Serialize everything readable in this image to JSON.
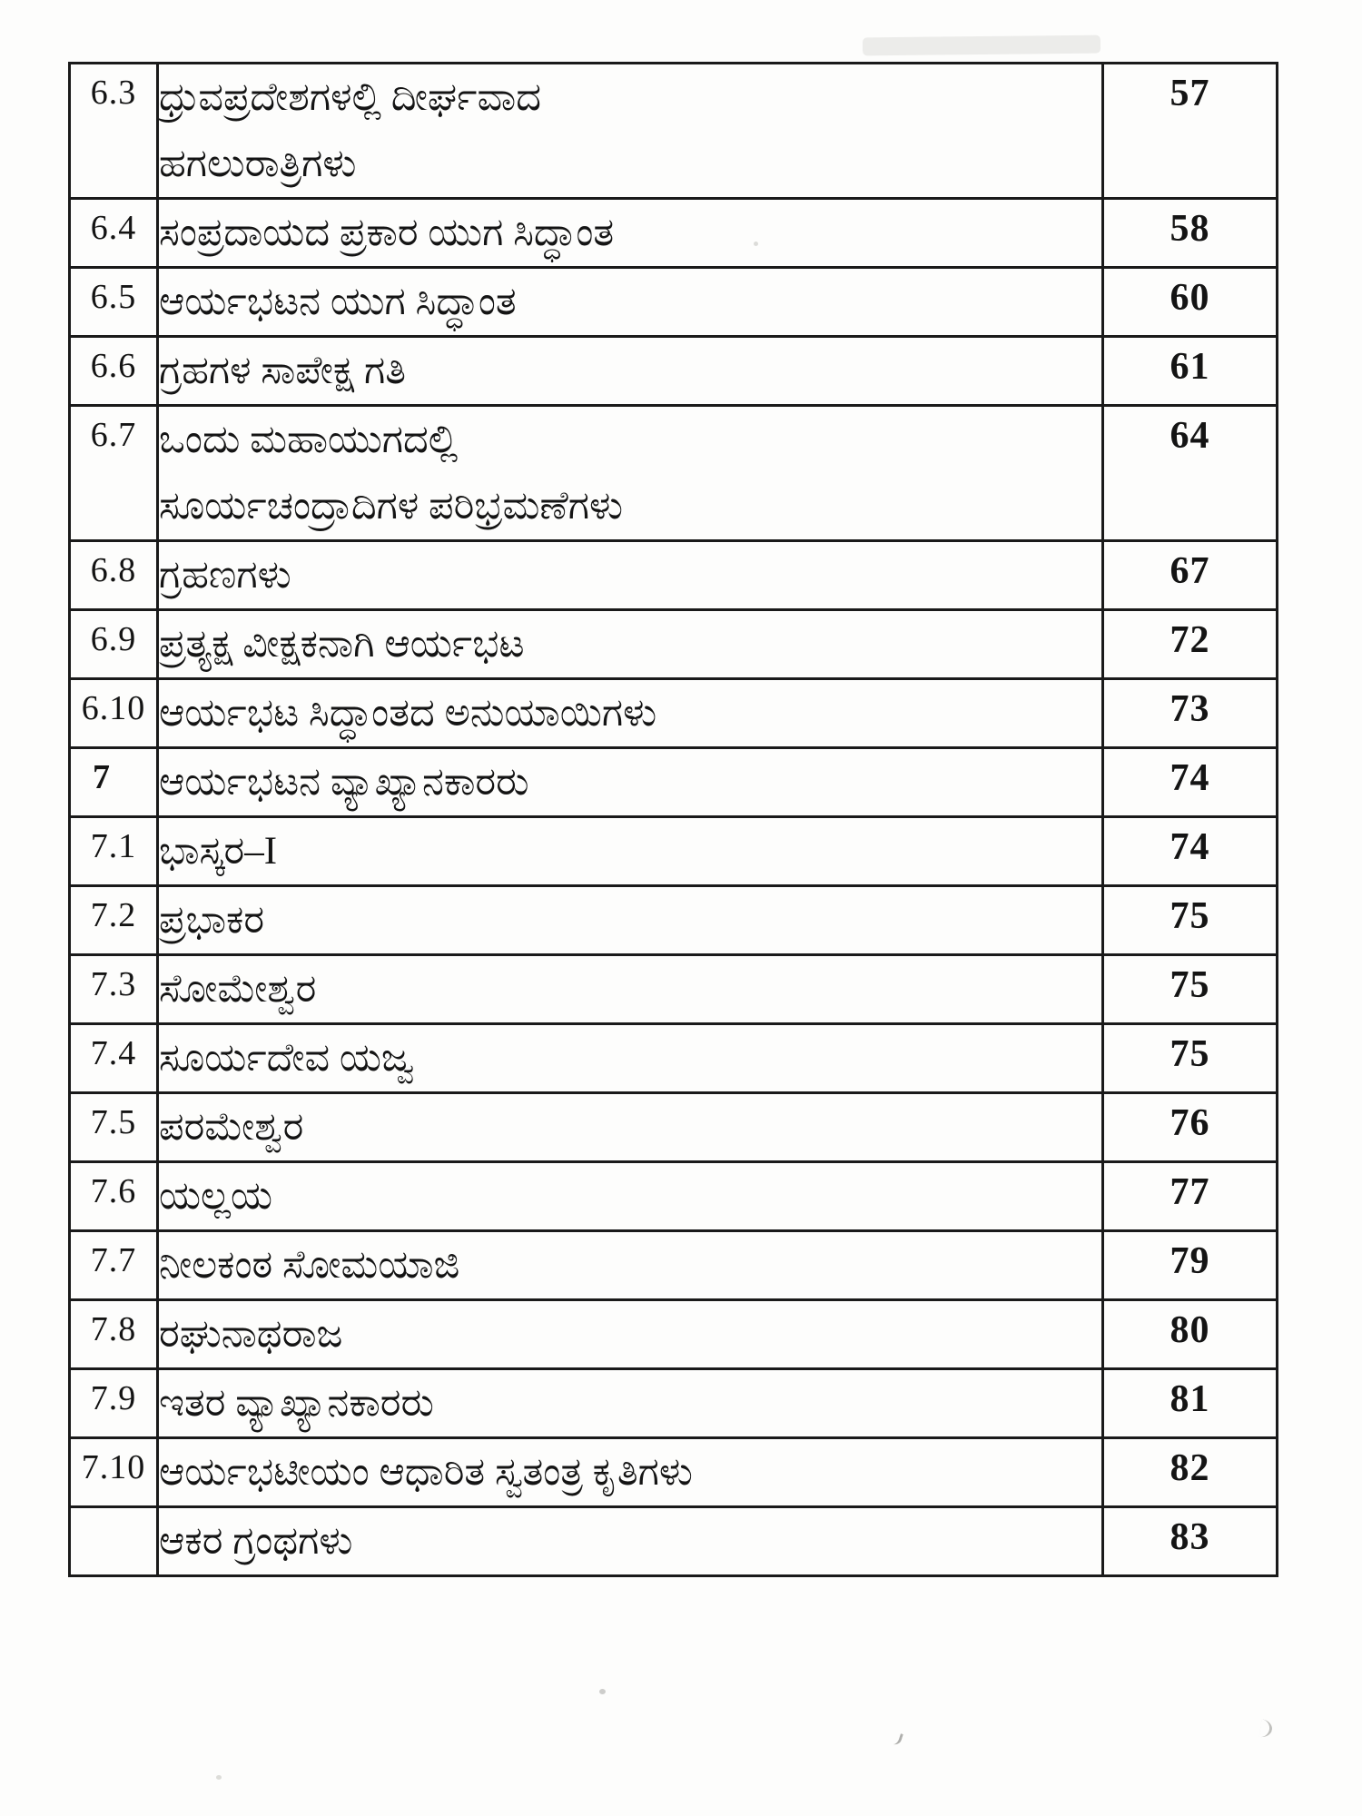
{
  "document": {
    "kind": "book-table-of-contents",
    "language": "Kannada",
    "text_color": "#141414",
    "border_color": "#1a1a1a",
    "toc_rows": [
      {
        "num": "6.3",
        "title_lines": [
          "ಧ್ರುವಪ್ರದೇಶಗಳಲ್ಲಿ ದೀರ್ಘವಾದ",
          "ಹಗಲುರಾತ್ರಿಗಳು"
        ],
        "page": "57",
        "level": "section"
      },
      {
        "num": "6.4",
        "title_lines": [
          "ಸಂಪ್ರದಾಯದ ಪ್ರಕಾರ ಯುಗ ಸಿದ್ಧಾಂತ"
        ],
        "page": "58",
        "level": "section"
      },
      {
        "num": "6.5",
        "title_lines": [
          "ಆರ್ಯಭಟನ ಯುಗ ಸಿದ್ಧಾಂತ"
        ],
        "page": "60",
        "level": "section"
      },
      {
        "num": "6.6",
        "title_lines": [
          "ಗ್ರಹಗಳ ಸಾಪೇಕ್ಷ ಗತಿ"
        ],
        "page": "61",
        "level": "section"
      },
      {
        "num": "6.7",
        "title_lines": [
          "ಒಂದು ಮಹಾಯುಗದಲ್ಲಿ",
          "ಸೂರ್ಯಚಂದ್ರಾದಿಗಳ ಪರಿಭ್ರಮಣೆಗಳು"
        ],
        "page": "64",
        "level": "section"
      },
      {
        "num": "6.8",
        "title_lines": [
          "ಗ್ರಹಣಗಳು"
        ],
        "page": "67",
        "level": "section"
      },
      {
        "num": "6.9",
        "title_lines": [
          "ಪ್ರತ್ಯಕ್ಷ ವೀಕ್ಷಕನಾಗಿ ಆರ್ಯಭಟ"
        ],
        "page": "72",
        "level": "section"
      },
      {
        "num": "6.10",
        "title_lines": [
          "ಆರ್ಯಭಟ ಸಿದ್ಧಾಂತದ ಅನುಯಾಯಿಗಳು"
        ],
        "page": "73",
        "level": "section"
      },
      {
        "num": "7",
        "title_lines": [
          "ಆರ್ಯಭಟನ ವ್ಯಾಖ್ಯಾನಕಾರರು"
        ],
        "page": "74",
        "level": "chapter"
      },
      {
        "num": "7.1",
        "title_lines": [
          "ಭಾಸ್ಕರ–I"
        ],
        "page": "74",
        "level": "section"
      },
      {
        "num": "7.2",
        "title_lines": [
          "ಪ್ರಭಾಕರ"
        ],
        "page": "75",
        "level": "section"
      },
      {
        "num": "7.3",
        "title_lines": [
          "ಸೋಮೇಶ್ವರ"
        ],
        "page": "75",
        "level": "section"
      },
      {
        "num": "7.4",
        "title_lines": [
          "ಸೂರ್ಯದೇವ ಯಜ್ವ"
        ],
        "page": "75",
        "level": "section"
      },
      {
        "num": "7.5",
        "title_lines": [
          "ಪರಮೇಶ್ವರ"
        ],
        "page": "76",
        "level": "section"
      },
      {
        "num": "7.6",
        "title_lines": [
          "ಯಲ್ಲಯ"
        ],
        "page": "77",
        "level": "section"
      },
      {
        "num": "7.7",
        "title_lines": [
          "ನೀಲಕಂಠ ಸೋಮಯಾಜಿ"
        ],
        "page": "79",
        "level": "section"
      },
      {
        "num": "7.8",
        "title_lines": [
          "ರಘುನಾಥರಾಜ"
        ],
        "page": "80",
        "level": "section"
      },
      {
        "num": "7.9",
        "title_lines": [
          "ಇತರ ವ್ಯಾಖ್ಯಾನಕಾರರು"
        ],
        "page": "81",
        "level": "section"
      },
      {
        "num": "7.10",
        "title_lines": [
          "ಆರ್ಯಭಟೀಯಂ ಆಧಾರಿತ ಸ್ವತಂತ್ರ ಕೃತಿಗಳು"
        ],
        "page": "82",
        "level": "section"
      },
      {
        "num": "",
        "title_lines": [
          "ಆಕರ ಗ್ರಂಥಗಳು"
        ],
        "page": "83",
        "level": "backmatter"
      }
    ]
  }
}
